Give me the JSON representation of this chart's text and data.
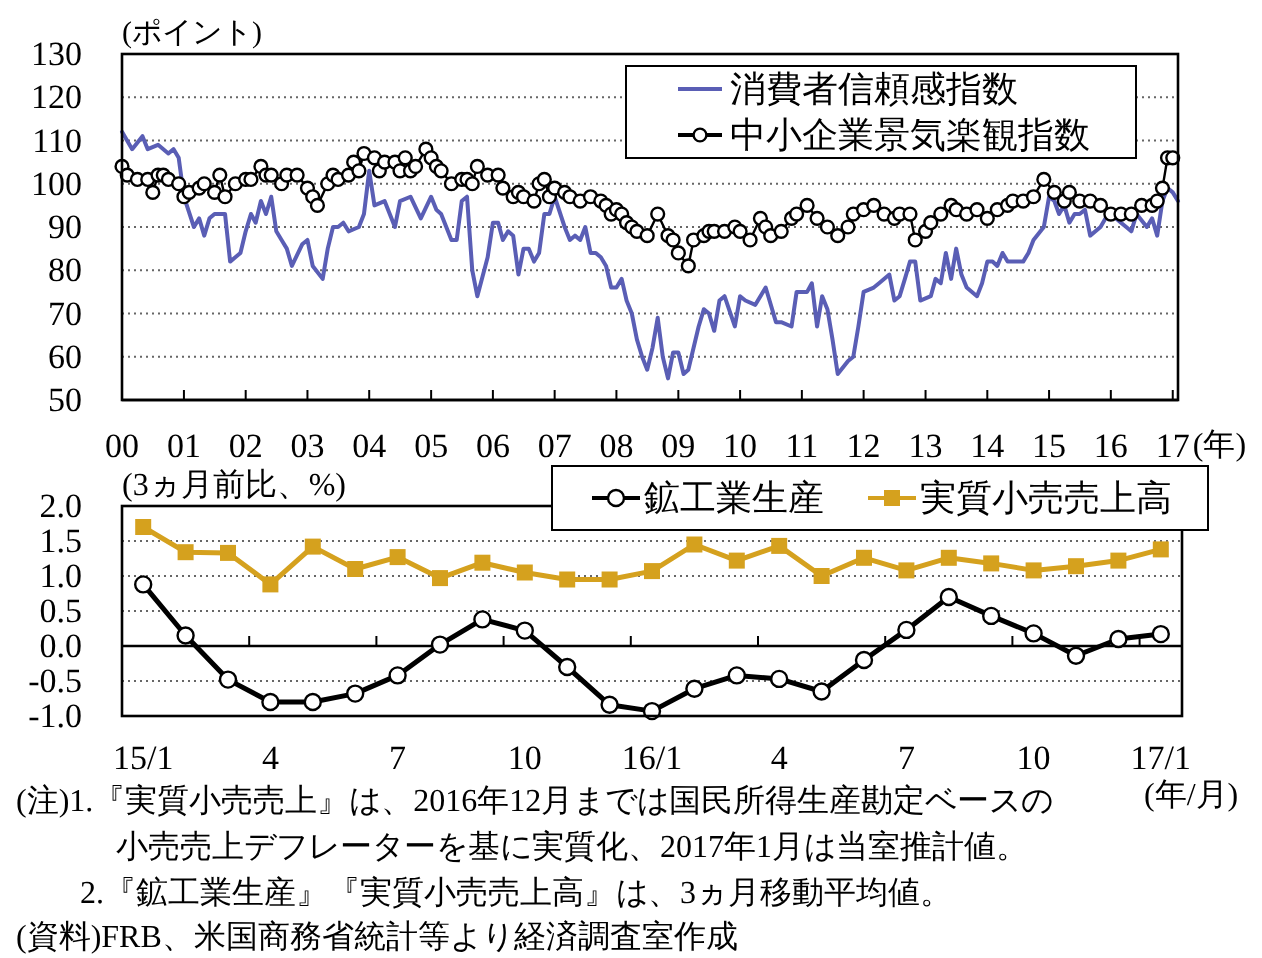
{
  "chart_data": [
    {
      "type": "line",
      "ylabel": "(ポイント)",
      "xlabel": "(年)",
      "xlim": [
        "2000-01",
        "2017-02"
      ],
      "xticks": [
        {
          "value": "2000-01",
          "label": "00"
        },
        {
          "value": "2001-01",
          "label": "01"
        },
        {
          "value": "2002-01",
          "label": "02"
        },
        {
          "value": "2003-01",
          "label": "03"
        },
        {
          "value": "2004-01",
          "label": "04"
        },
        {
          "value": "2005-01",
          "label": "05"
        },
        {
          "value": "2006-01",
          "label": "06"
        },
        {
          "value": "2007-01",
          "label": "07"
        },
        {
          "value": "2008-01",
          "label": "08"
        },
        {
          "value": "2009-01",
          "label": "09"
        },
        {
          "value": "2010-01",
          "label": "10"
        },
        {
          "value": "2011-01",
          "label": "11"
        },
        {
          "value": "2012-01",
          "label": "12"
        },
        {
          "value": "2013-01",
          "label": "13"
        },
        {
          "value": "2014-01",
          "label": "14"
        },
        {
          "value": "2015-01",
          "label": "15"
        },
        {
          "value": "2016-01",
          "label": "16"
        },
        {
          "value": "2017-01",
          "label": "17"
        }
      ],
      "ylim": [
        50,
        130
      ],
      "yticks": [
        50,
        60,
        70,
        80,
        90,
        100,
        110,
        120,
        130
      ],
      "grid": "y",
      "legend": "top right",
      "series": [
        {
          "name": "消費者信頼感指数",
          "color": "#5a5eb5",
          "marker": "none",
          "x": [
            "2000-01",
            "2000-03",
            "2000-05",
            "2000-06",
            "2000-08",
            "2000-10",
            "2000-11",
            "2000-12",
            "2001-01",
            "2001-03",
            "2001-04",
            "2001-05",
            "2001-06",
            "2001-07",
            "2001-09",
            "2001-10",
            "2001-11",
            "2001-12",
            "2002-01",
            "2002-02",
            "2002-03",
            "2002-04",
            "2002-05",
            "2002-06",
            "2002-07",
            "2002-08",
            "2002-09",
            "2002-10",
            "2002-12",
            "2003-01",
            "2003-02",
            "2003-04",
            "2003-05",
            "2003-06",
            "2003-07",
            "2003-08",
            "2003-09",
            "2003-11",
            "2003-12",
            "2004-01",
            "2004-02",
            "2004-04",
            "2004-06",
            "2004-07",
            "2004-09",
            "2004-11",
            "2005-01",
            "2005-02",
            "2005-03",
            "2005-05",
            "2005-06",
            "2005-07",
            "2005-08",
            "2005-09",
            "2005-10",
            "2005-12",
            "2006-01",
            "2006-02",
            "2006-03",
            "2006-04",
            "2006-05",
            "2006-06",
            "2006-07",
            "2006-08",
            "2006-09",
            "2006-10",
            "2006-11",
            "2006-12",
            "2007-01",
            "2007-03",
            "2007-04",
            "2007-05",
            "2007-06",
            "2007-07",
            "2007-08",
            "2007-09",
            "2007-10",
            "2007-11",
            "2007-12",
            "2008-01",
            "2008-02",
            "2008-03",
            "2008-04",
            "2008-05",
            "2008-06",
            "2008-07",
            "2008-08",
            "2008-09",
            "2008-10",
            "2008-11",
            "2008-12",
            "2009-01",
            "2009-02",
            "2009-03",
            "2009-05",
            "2009-06",
            "2009-07",
            "2009-08",
            "2009-09",
            "2009-10",
            "2009-12",
            "2010-01",
            "2010-02",
            "2010-04",
            "2010-06",
            "2010-08",
            "2010-09",
            "2010-11",
            "2010-12",
            "2011-02",
            "2011-03",
            "2011-04",
            "2011-05",
            "2011-06",
            "2011-07",
            "2011-08",
            "2011-10",
            "2011-11",
            "2011-12",
            "2012-01",
            "2012-03",
            "2012-04",
            "2012-06",
            "2012-07",
            "2012-08",
            "2012-09",
            "2012-10",
            "2012-11",
            "2012-12",
            "2013-02",
            "2013-03",
            "2013-04",
            "2013-05",
            "2013-06",
            "2013-07",
            "2013-08",
            "2013-09",
            "2013-11",
            "2013-12",
            "2014-01",
            "2014-02",
            "2014-03",
            "2014-04",
            "2014-05",
            "2014-06",
            "2014-08",
            "2014-09",
            "2014-10",
            "2014-12",
            "2015-01",
            "2015-02",
            "2015-03",
            "2015-04",
            "2015-05",
            "2015-06",
            "2015-07",
            "2015-08",
            "2015-09",
            "2015-11",
            "2015-12",
            "2016-01",
            "2016-03",
            "2016-04",
            "2016-05",
            "2016-06",
            "2016-08",
            "2016-09",
            "2016-10",
            "2016-11",
            "2016-12",
            "2017-01",
            "2017-02"
          ],
          "values": [
            112,
            108,
            111,
            108,
            109,
            107,
            108,
            106,
            97,
            90,
            92,
            88,
            92,
            93,
            93,
            82,
            83,
            84,
            89,
            93,
            91,
            96,
            93,
            97,
            89,
            87,
            85,
            81,
            86,
            87,
            81,
            78,
            85,
            90,
            90,
            91,
            89,
            90,
            93,
            103,
            95,
            96,
            90,
            96,
            97,
            92,
            97,
            94,
            93,
            87,
            87,
            96,
            97,
            80,
            74,
            83,
            91,
            91,
            87,
            89,
            88,
            79,
            85,
            85,
            82,
            84,
            93,
            93,
            97,
            90,
            87,
            88,
            87,
            90,
            84,
            84,
            83,
            81,
            76,
            76,
            78,
            73,
            70,
            64,
            60,
            57,
            62,
            69,
            60,
            55,
            61,
            61,
            56,
            57,
            67,
            71,
            70,
            66,
            73,
            74,
            67,
            74,
            73,
            72,
            76,
            68,
            68,
            67,
            75,
            75,
            77,
            67,
            74,
            71,
            64,
            56,
            59,
            60,
            67,
            75,
            76,
            77,
            79,
            73,
            74,
            78,
            82,
            82,
            73,
            74,
            78,
            77,
            84,
            78,
            85,
            79,
            76,
            74,
            77,
            82,
            82,
            81,
            84,
            82,
            82,
            82,
            84,
            87,
            90,
            97,
            96,
            93,
            95,
            91,
            93,
            93,
            94,
            88,
            90,
            92,
            93,
            91,
            90,
            89,
            93,
            90,
            92,
            88,
            96,
            99,
            98,
            96
          ]
        },
        {
          "name": "中小企業景気楽観指数",
          "color": "#000000",
          "marker": "circle",
          "x": [
            "2000-01",
            "2000-02",
            "2000-04",
            "2000-06",
            "2000-07",
            "2000-08",
            "2000-09",
            "2000-10",
            "2000-12",
            "2001-01",
            "2001-02",
            "2001-04",
            "2001-05",
            "2001-07",
            "2001-08",
            "2001-09",
            "2001-11",
            "2002-01",
            "2002-02",
            "2002-04",
            "2002-05",
            "2002-06",
            "2002-08",
            "2002-09",
            "2002-11",
            "2003-01",
            "2003-02",
            "2003-03",
            "2003-05",
            "2003-06",
            "2003-07",
            "2003-09",
            "2003-10",
            "2003-11",
            "2003-12",
            "2004-02",
            "2004-03",
            "2004-04",
            "2004-06",
            "2004-07",
            "2004-08",
            "2004-09",
            "2004-10",
            "2004-12",
            "2005-01",
            "2005-02",
            "2005-03",
            "2005-05",
            "2005-07",
            "2005-08",
            "2005-09",
            "2005-10",
            "2005-12",
            "2006-02",
            "2006-03",
            "2006-05",
            "2006-06",
            "2006-07",
            "2006-09",
            "2006-10",
            "2006-11",
            "2006-12",
            "2007-01",
            "2007-03",
            "2007-04",
            "2007-06",
            "2007-08",
            "2007-10",
            "2007-11",
            "2007-12",
            "2008-01",
            "2008-02",
            "2008-03",
            "2008-04",
            "2008-05",
            "2008-07",
            "2008-09",
            "2008-11",
            "2008-12",
            "2009-01",
            "2009-03",
            "2009-04",
            "2009-06",
            "2009-07",
            "2009-08",
            "2009-10",
            "2009-12",
            "2010-01",
            "2010-03",
            "2010-05",
            "2010-06",
            "2010-07",
            "2010-09",
            "2010-11",
            "2010-12",
            "2011-02",
            "2011-04",
            "2011-06",
            "2011-08",
            "2011-10",
            "2011-11",
            "2012-01",
            "2012-03",
            "2012-05",
            "2012-07",
            "2012-08",
            "2012-10",
            "2012-11",
            "2013-01",
            "2013-02",
            "2013-04",
            "2013-06",
            "2013-07",
            "2013-09",
            "2013-11",
            "2014-01",
            "2014-03",
            "2014-05",
            "2014-06",
            "2014-08",
            "2014-10",
            "2014-12",
            "2015-02",
            "2015-04",
            "2015-05",
            "2015-07",
            "2015-09",
            "2015-11",
            "2016-01",
            "2016-03",
            "2016-05",
            "2016-07",
            "2016-09",
            "2016-10",
            "2016-11",
            "2016-12",
            "2017-01"
          ],
          "values": [
            104,
            102,
            101,
            101,
            98,
            102,
            102,
            101,
            100,
            97,
            98,
            99,
            100,
            98,
            102,
            97,
            100,
            101,
            101,
            104,
            102,
            102,
            100,
            102,
            102,
            99,
            97,
            95,
            100,
            102,
            101,
            102,
            105,
            103,
            107,
            106,
            103,
            105,
            105,
            103,
            106,
            103,
            104,
            108,
            106,
            104,
            103,
            100,
            101,
            101,
            100,
            104,
            102,
            102,
            99,
            97,
            98,
            97,
            96,
            100,
            101,
            97,
            99,
            98,
            97,
            96,
            97,
            96,
            95,
            93,
            94,
            93,
            91,
            90,
            89,
            88,
            93,
            88,
            87,
            84,
            81,
            87,
            88,
            89,
            89,
            89,
            90,
            89,
            87,
            92,
            90,
            88,
            89,
            92,
            93,
            95,
            92,
            90,
            88,
            90,
            93,
            94,
            95,
            93,
            92,
            93,
            93,
            87,
            89,
            91,
            93,
            95,
            94,
            93,
            94,
            92,
            94,
            95,
            96,
            96,
            97,
            101,
            98,
            96,
            98,
            96,
            96,
            95,
            93,
            93,
            93,
            95,
            95,
            96,
            99,
            106,
            106
          ]
        }
      ]
    },
    {
      "type": "line",
      "ylabel": "(3ヵ月前比、%)",
      "xlabel": "(年/月)",
      "categories": [
        "15/1",
        null,
        null,
        "4",
        null,
        null,
        "7",
        null,
        null,
        "10",
        null,
        null,
        "16/1",
        null,
        null,
        "4",
        null,
        null,
        "7",
        null,
        null,
        "10",
        null,
        null,
        "17/1"
      ],
      "ylim": [
        -1,
        2
      ],
      "yticks": [
        {
          "value": -1,
          "label": "-1.0"
        },
        {
          "value": -0.5,
          "label": "-0.5"
        },
        {
          "value": 0,
          "label": "0.0"
        },
        {
          "value": 0.5,
          "label": "0.5"
        },
        {
          "value": 1,
          "label": "1.0"
        },
        {
          "value": 1.5,
          "label": "1.5"
        },
        {
          "value": 2,
          "label": "2.0"
        }
      ],
      "grid": "y",
      "legend": "top right",
      "series": [
        {
          "name": "鉱工業生産",
          "color": "#000000",
          "marker": "circle",
          "values": [
            0.88,
            0.15,
            -0.48,
            -0.8,
            -0.8,
            -0.68,
            -0.42,
            0.02,
            0.38,
            0.22,
            -0.3,
            -0.84,
            -0.93,
            -0.61,
            -0.42,
            -0.47,
            -0.65,
            -0.2,
            0.23,
            0.7,
            0.43,
            0.18,
            -0.14,
            0.1,
            0.17
          ]
        },
        {
          "name": "実質小売売上高",
          "color": "#d5a11e",
          "marker": "square",
          "values": [
            1.7,
            1.34,
            1.33,
            0.88,
            1.42,
            1.1,
            1.27,
            0.97,
            1.19,
            1.05,
            0.95,
            0.95,
            1.07,
            1.45,
            1.22,
            1.43,
            1.0,
            1.26,
            1.08,
            1.26,
            1.18,
            1.08,
            1.14,
            1.22,
            1.38
          ]
        }
      ],
      "annotations": [
        "(注)1.『実質小売売上』は、2016年12月までは国民所得生産勘定ベースの",
        "小売売上デフレーターを基に実質化、2017年1月は当室推計値。",
        "2.『鉱工業生産』『実質小売売上高』は、3ヵ月移動平均値。",
        "(資料)FRB、米国商務省統計等より経済調査室作成"
      ]
    }
  ]
}
